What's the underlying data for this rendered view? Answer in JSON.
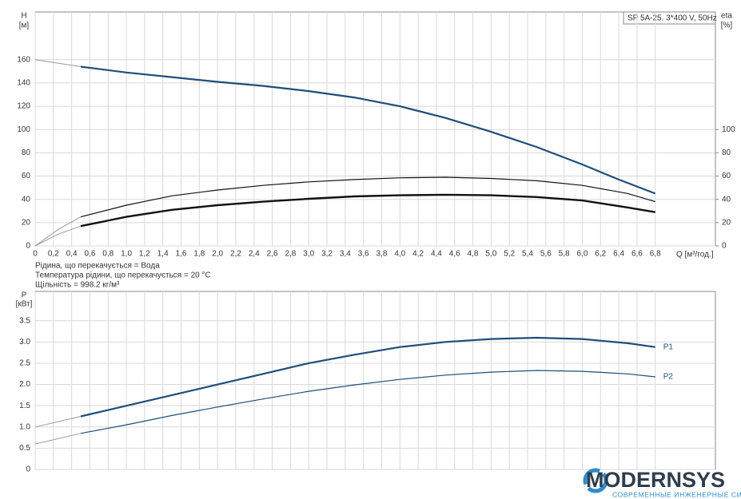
{
  "chart_data": [
    {
      "type": "line",
      "title": "SP 5A-25. 3*400 V, 50Hz",
      "y_label": "H",
      "y_unit": "[м]",
      "y2_label": "eta",
      "y2_unit": "[%]",
      "x_label": "Q [м³/год.]",
      "notes": [
        "Рідина, що перекачується = Вода",
        "Температура рідини, що перекачується = 20 °C",
        "Щільність = 998.2 кг/м³"
      ],
      "xlim": [
        0,
        7.46
      ],
      "ylim": [
        0,
        201
      ],
      "y2lim": [
        0,
        201
      ],
      "grid": true,
      "xticks": [
        0,
        {
          "value": 0.2,
          "label": "0,2"
        },
        {
          "value": 0.4,
          "label": "0,4"
        },
        {
          "value": 0.6,
          "label": "0,6"
        },
        {
          "value": 0.8,
          "label": "0,8"
        },
        {
          "value": 1.0,
          "label": "1,0"
        },
        {
          "value": 1.2,
          "label": "1,2"
        },
        {
          "value": 1.4,
          "label": "1,4"
        },
        {
          "value": 1.6,
          "label": "1,6"
        },
        {
          "value": 1.8,
          "label": "1,8"
        },
        {
          "value": 2.0,
          "label": "2,0"
        },
        {
          "value": 2.2,
          "label": "2,2"
        },
        {
          "value": 2.4,
          "label": "2,4"
        },
        {
          "value": 2.6,
          "label": "2,6"
        },
        {
          "value": 2.8,
          "label": "2,8"
        },
        {
          "value": 3.0,
          "label": "3,0"
        },
        {
          "value": 3.2,
          "label": "3,2"
        },
        {
          "value": 3.4,
          "label": "3,4"
        },
        {
          "value": 3.6,
          "label": "3,6"
        },
        {
          "value": 3.8,
          "label": "3,8"
        },
        {
          "value": 4.0,
          "label": "4,0"
        },
        {
          "value": 4.2,
          "label": "4,2"
        },
        {
          "value": 4.4,
          "label": "4,4"
        },
        {
          "value": 4.6,
          "label": "4,6"
        },
        {
          "value": 4.8,
          "label": "4,8"
        },
        {
          "value": 5.0,
          "label": "5,0"
        },
        {
          "value": 5.2,
          "label": "5,2"
        },
        {
          "value": 5.4,
          "label": "5,4"
        },
        {
          "value": 5.6,
          "label": "5,6"
        },
        {
          "value": 5.8,
          "label": "5,8"
        },
        {
          "value": 6.0,
          "label": "6,0"
        },
        {
          "value": 6.2,
          "label": "6,2"
        },
        {
          "value": 6.4,
          "label": "6,4"
        },
        {
          "value": 6.6,
          "label": "6,6"
        },
        {
          "value": 6.8,
          "label": "6,8"
        }
      ],
      "yticks": [
        0,
        20,
        40,
        60,
        80,
        100,
        120,
        140,
        160
      ],
      "y2ticks": [
        0,
        20,
        40,
        60,
        80,
        100
      ],
      "series": [
        {
          "color": "#999999",
          "width": 1,
          "x": [
            0,
            0.5
          ],
          "values": [
            160,
            154
          ]
        },
        {
          "color": "#1f4e79",
          "width": 2.2,
          "x": [
            0.5,
            1,
            1.5,
            2,
            2.5,
            3,
            3.5,
            4,
            4.5,
            5,
            5.5,
            6,
            6.4,
            6.8
          ],
          "values": [
            154,
            149,
            145,
            141,
            137.5,
            133,
            127.5,
            120,
            110,
            98,
            85,
            70,
            57,
            45
          ]
        },
        {
          "color": "#999999",
          "width": 1,
          "axis": "y2",
          "x": [
            0,
            0.25,
            0.5
          ],
          "values": [
            0,
            14,
            25
          ]
        },
        {
          "color": "#111111",
          "width": 1.2,
          "axis": "y2",
          "x": [
            0.5,
            1,
            1.5,
            2,
            2.5,
            3,
            3.5,
            4,
            4.5,
            5,
            5.5,
            6,
            6.5,
            6.8
          ],
          "values": [
            25,
            35,
            43,
            48,
            52,
            55,
            57,
            58.5,
            59,
            58,
            56,
            52,
            45,
            38
          ]
        },
        {
          "color": "#999999",
          "width": 1,
          "axis": "y2",
          "x": [
            0,
            0.25,
            0.5
          ],
          "values": [
            0,
            10,
            17
          ]
        },
        {
          "color": "#111111",
          "width": 2.4,
          "axis": "y2",
          "x": [
            0.5,
            1,
            1.5,
            2,
            2.5,
            3,
            3.5,
            4,
            4.5,
            5,
            5.5,
            6,
            6.5,
            6.8
          ],
          "values": [
            17,
            25,
            31,
            35,
            38,
            40.5,
            42.5,
            43.5,
            44,
            43.5,
            42,
            39,
            33,
            29
          ]
        }
      ]
    },
    {
      "type": "line",
      "y_label": "P",
      "y_unit": "[кВт]",
      "xlim": [
        0,
        7.46
      ],
      "ylim": [
        0,
        4.19
      ],
      "grid": true,
      "xticks": [
        0,
        0.2,
        0.4,
        0.6,
        0.8,
        1,
        1.2,
        1.4,
        1.6,
        1.8,
        2,
        2.2,
        2.4,
        2.6,
        2.8,
        3,
        3.2,
        3.4,
        3.6,
        3.8,
        4,
        4.2,
        4.4,
        4.6,
        4.8,
        5,
        5.2,
        5.4,
        5.6,
        5.8,
        6,
        6.2,
        6.4,
        6.6,
        6.8
      ],
      "yticks": [
        0,
        0.5,
        {
          "value": 1,
          "label": "1.0"
        },
        1.5,
        {
          "value": 2,
          "label": "2.0"
        },
        2.5,
        {
          "value": 3,
          "label": "3.0"
        },
        3.5
      ],
      "series": [
        {
          "color": "#999999",
          "width": 1,
          "x": [
            0,
            0.5
          ],
          "values": [
            1.0,
            1.25
          ]
        },
        {
          "name": "P1",
          "color": "#1f4e79",
          "width": 2.2,
          "x": [
            0.5,
            1,
            1.5,
            2,
            2.5,
            3,
            3.5,
            4,
            4.5,
            5,
            5.5,
            6,
            6.5,
            6.8
          ],
          "values": [
            1.25,
            1.5,
            1.75,
            2.0,
            2.25,
            2.5,
            2.7,
            2.88,
            3.0,
            3.07,
            3.1,
            3.07,
            2.97,
            2.88
          ]
        },
        {
          "color": "#999999",
          "width": 1,
          "x": [
            0,
            0.5
          ],
          "values": [
            0.6,
            0.85
          ]
        },
        {
          "name": "P2",
          "color": "#1f4e79",
          "width": 1.2,
          "x": [
            0.5,
            1,
            1.5,
            2,
            2.5,
            3,
            3.5,
            4,
            4.5,
            5,
            5.5,
            6,
            6.5,
            6.8
          ],
          "values": [
            0.85,
            1.05,
            1.27,
            1.47,
            1.66,
            1.84,
            1.99,
            2.12,
            2.22,
            2.29,
            2.33,
            2.31,
            2.25,
            2.18
          ]
        }
      ]
    }
  ],
  "logo": {
    "name": "MODERNSYS",
    "tagline": "СОВРЕМЕННЫЕ ИНЖЕНЕРНЫЕ СИСТЕМЫ"
  }
}
